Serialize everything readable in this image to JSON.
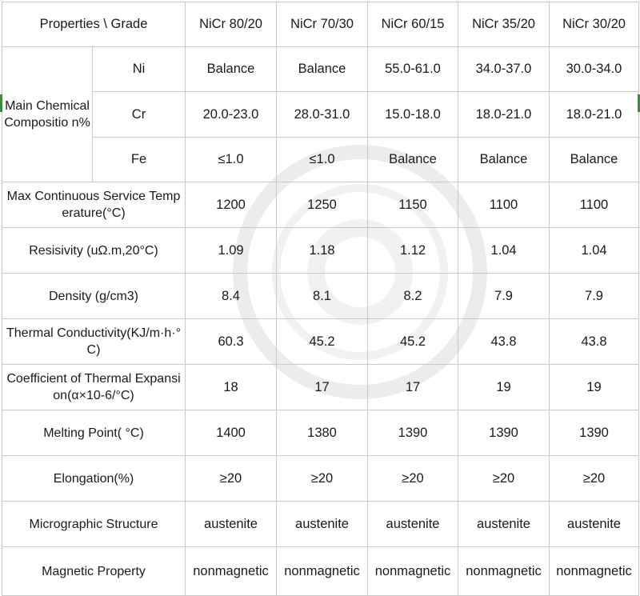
{
  "header": {
    "label": "Properties \\ Grade",
    "grades": [
      "NiCr 80/20",
      "NiCr 70/30",
      "NiCr 60/15",
      "NiCr 35/20",
      "NiCr 30/20"
    ]
  },
  "composition": {
    "label": "Main Chemical Compositio n%",
    "rows": [
      {
        "element": "Ni",
        "values": [
          "Balance",
          "Balance",
          "55.0-61.0",
          "34.0-37.0",
          "30.0-34.0"
        ]
      },
      {
        "element": "Cr",
        "values": [
          "20.0-23.0",
          "28.0-31.0",
          "15.0-18.0",
          "18.0-21.0",
          "18.0-21.0"
        ]
      },
      {
        "element": "Fe",
        "values": [
          "≤1.0",
          "≤1.0",
          "Balance",
          "Balance",
          "Balance"
        ]
      }
    ]
  },
  "properties": [
    {
      "label": "Max Continuous Service Temperature(°C)",
      "values": [
        "1200",
        "1250",
        "1150",
        "1100",
        "1100"
      ]
    },
    {
      "label": "Resisivity  (uΩ.m,20°C)",
      "values": [
        "1.09",
        "1.18",
        "1.12",
        "1.04",
        "1.04"
      ]
    },
    {
      "label": "Density (g/cm3)",
      "values": [
        "8.4",
        "8.1",
        "8.2",
        "7.9",
        "7.9"
      ]
    },
    {
      "label": "Thermal Conductivity(KJ/m·h·°C)",
      "values": [
        "60.3",
        "45.2",
        "45.2",
        "43.8",
        "43.8"
      ]
    },
    {
      "label": "Coefficient of Thermal Expansion(α×10-6/°C)",
      "values": [
        "18",
        "17",
        "17",
        "19",
        "19"
      ]
    },
    {
      "label": "Melting Point( °C)",
      "values": [
        "1400",
        "1380",
        "1390",
        "1390",
        "1390"
      ]
    },
    {
      "label": "Elongation(%)",
      "values": [
        "≥20",
        "≥20",
        "≥20",
        "≥20",
        "≥20"
      ]
    },
    {
      "label": "Micrographic Structure",
      "values": [
        "austenite",
        "austenite",
        "austenite",
        "austenite",
        "austenite"
      ]
    },
    {
      "label": "Magnetic Property",
      "values": [
        "nonmagnetic",
        "nonmagnetic",
        "nonmagnetic",
        "nonmagnetic",
        "nonmagnetic"
      ]
    }
  ],
  "colors": {
    "border": "#c9c9c9",
    "text": "#1a1a1a",
    "side_mark": "#3d8b3d"
  }
}
